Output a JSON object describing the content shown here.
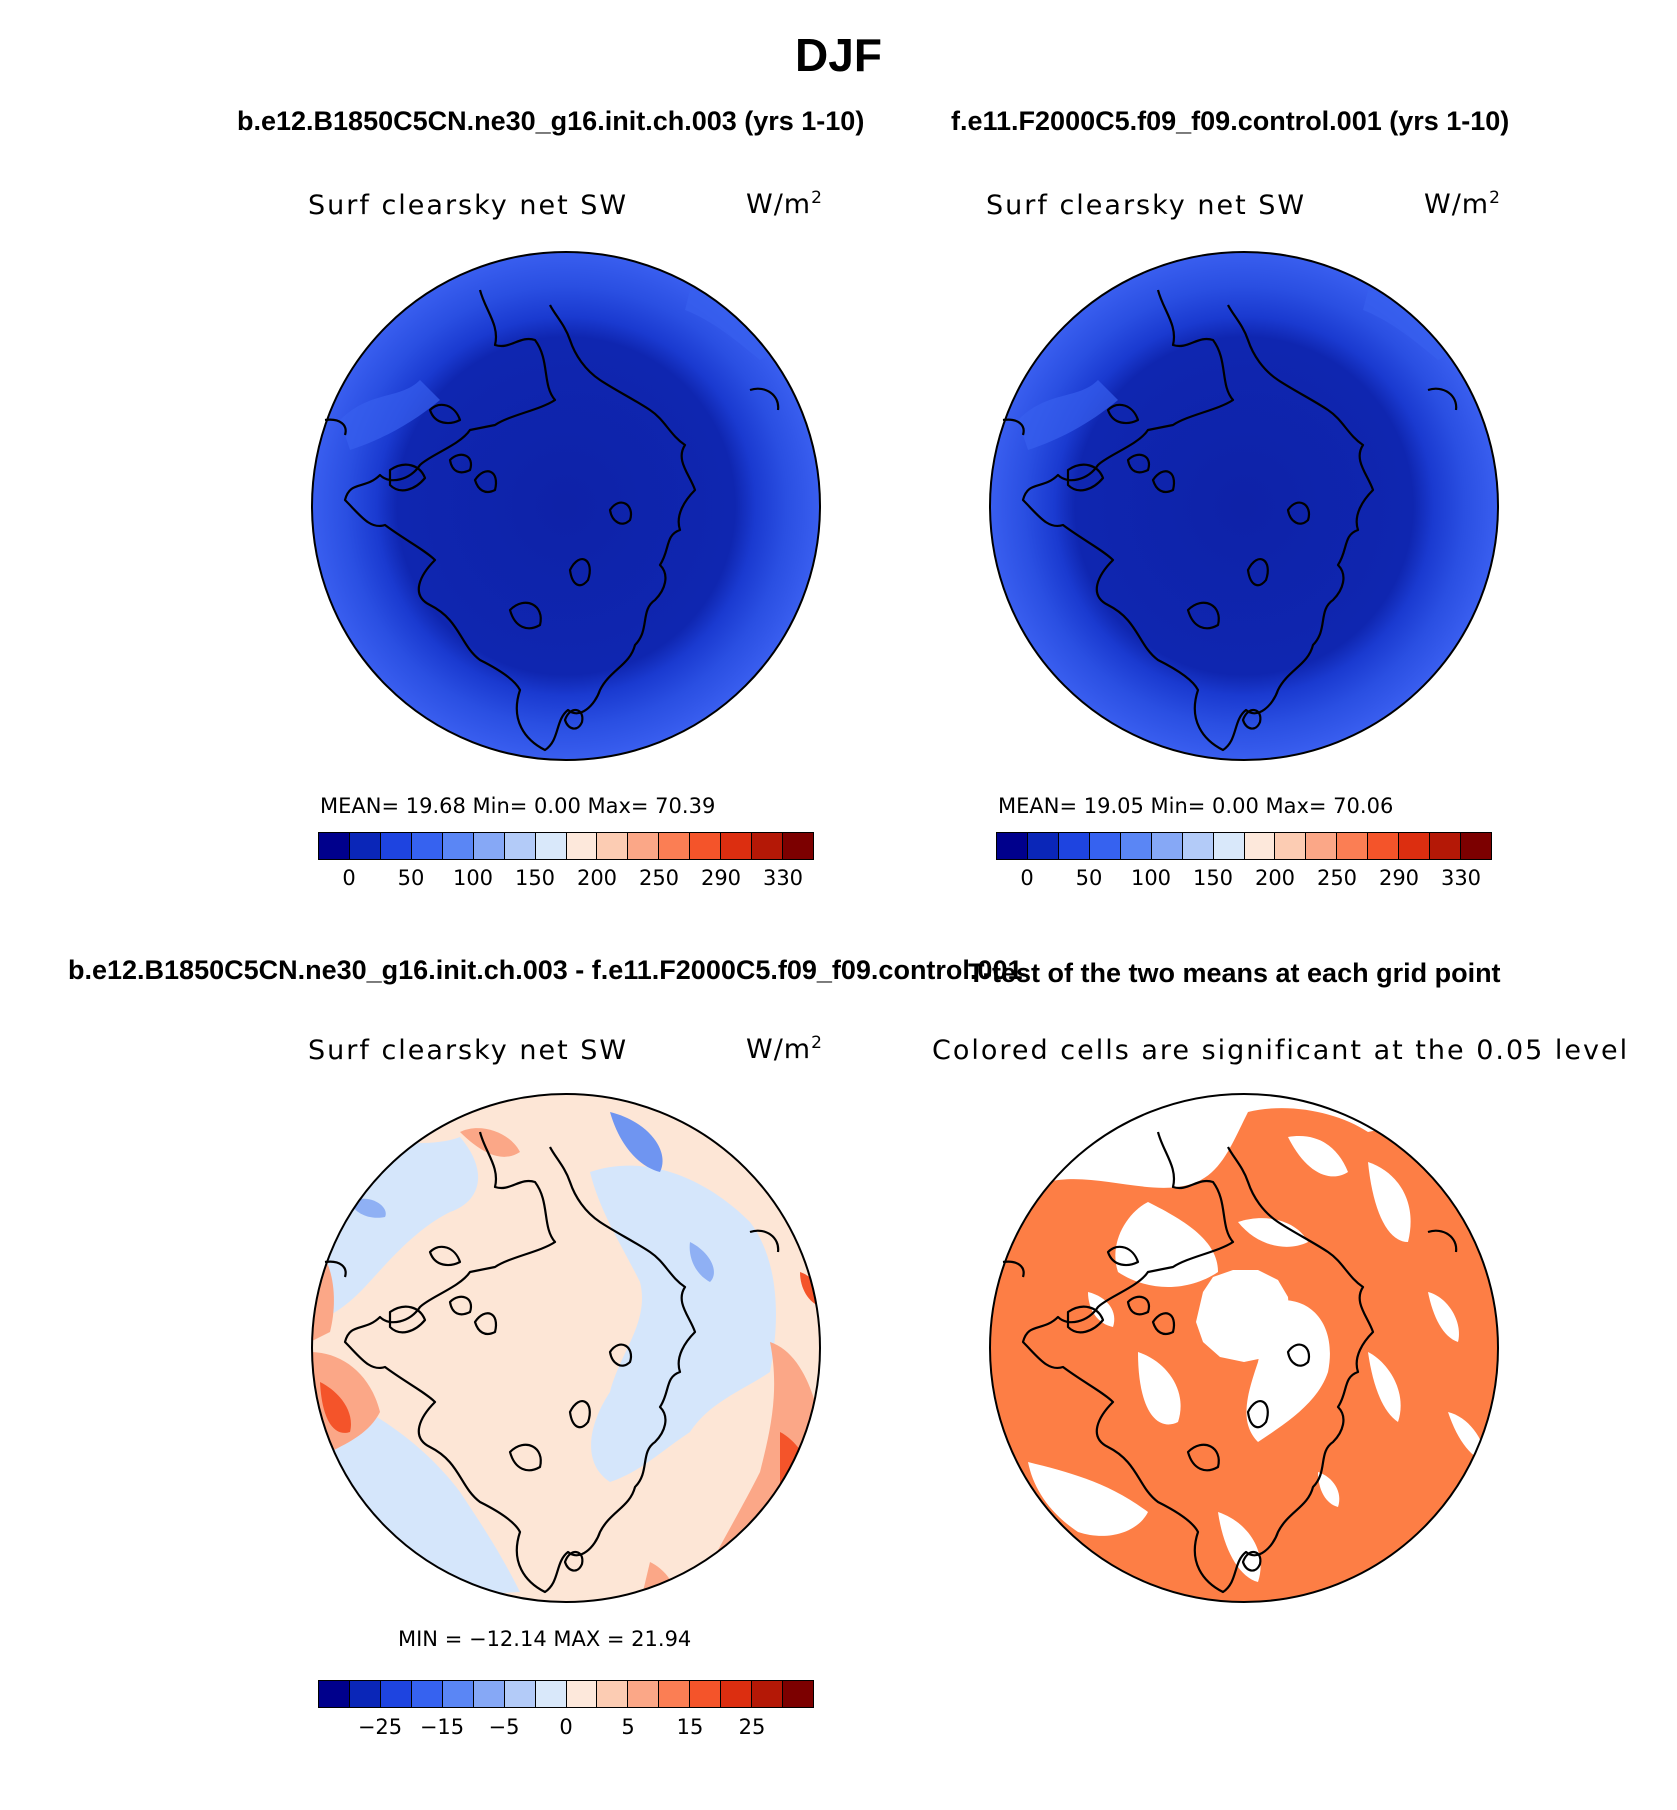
{
  "page_title": "DJF",
  "panels": {
    "top_left": {
      "case_title": "b.e12.B1850C5CN.ne30_g16.init.ch.003 (yrs 1-10)",
      "variable": "Surf clearsky net SW",
      "units_base": "W/m",
      "units_exp": "2",
      "stats": "MEAN=   19.68   Min=     0.00   Max=    70.39",
      "field": "absolute"
    },
    "top_right": {
      "case_title": "f.e11.F2000C5.f09_f09.control.001 (yrs 1-10)",
      "variable": "Surf clearsky net SW",
      "units_base": "W/m",
      "units_exp": "2",
      "stats": "MEAN=   19.05   Min=     0.00   Max=    70.06",
      "field": "absolute"
    },
    "bottom_left": {
      "case_title": "b.e12.B1850C5CN.ne30_g16.init.ch.003 - f.e11.F2000C5.f09_f09.control.001",
      "variable": "Surf clearsky net SW",
      "units_base": "W/m",
      "units_exp": "2",
      "stats": "MIN = −12.14  MAX =   21.94",
      "field": "difference"
    },
    "bottom_right": {
      "case_title": "T-test of the two means at each grid point",
      "variable": "Colored cells are significant at the 0.05 level",
      "field": "ttest",
      "significant_color": "#fd7e45"
    }
  },
  "colorbars": {
    "absolute": {
      "colors": [
        "#00008c",
        "#0a26b8",
        "#1e44e0",
        "#3662f0",
        "#5a86f5",
        "#86a8f6",
        "#b3cbf8",
        "#d9e8fa",
        "#fde8db",
        "#fcccb3",
        "#fba787",
        "#fb7e54",
        "#f4542a",
        "#dc2e10",
        "#b41806",
        "#7c0000"
      ],
      "tick_labels": [
        "0",
        "50",
        "100",
        "150",
        "200",
        "250",
        "290",
        "330"
      ]
    },
    "difference": {
      "colors": [
        "#00008c",
        "#0a26b8",
        "#1e44e0",
        "#3662f0",
        "#5a86f5",
        "#86a8f6",
        "#b3cbf8",
        "#d9e8fa",
        "#fde8db",
        "#fcccb3",
        "#fba787",
        "#fb7e54",
        "#f4542a",
        "#dc2e10",
        "#b41806",
        "#7c0000"
      ],
      "tick_labels": [
        "−25",
        "−15",
        "−5",
        "0",
        "5",
        "15",
        "25"
      ]
    }
  },
  "map_colors": {
    "deep_blue": "#1a34d6",
    "outer_blue": "#2d50e6",
    "diff_light_blue": "#d5e6fb",
    "diff_light_orange": "#fde6d6",
    "diff_orange": "#fba787",
    "diff_red": "#f4542a",
    "diff_blue": "#6f95f1"
  }
}
